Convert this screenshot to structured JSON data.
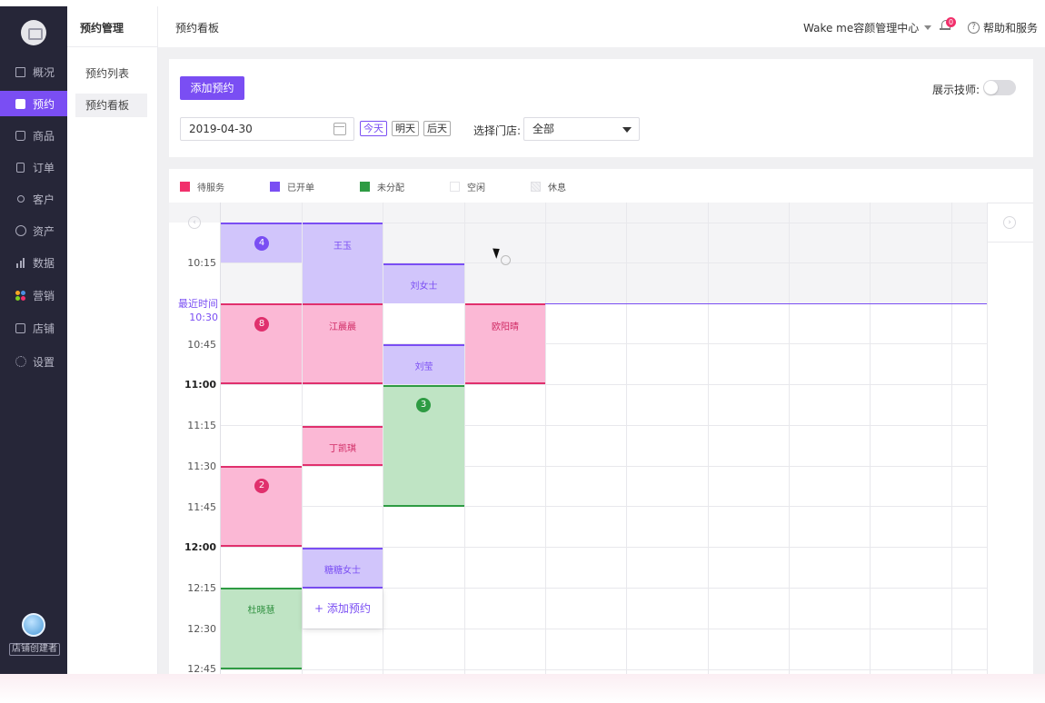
{
  "sidebar": {
    "items": [
      {
        "label": "概况",
        "icon": "monitor-icon",
        "active": false
      },
      {
        "label": "预约",
        "icon": "calendar-icon",
        "active": true
      },
      {
        "label": "商品",
        "icon": "shopping-bag-icon",
        "active": false
      },
      {
        "label": "订单",
        "icon": "document-icon",
        "active": false
      },
      {
        "label": "客户",
        "icon": "user-icon",
        "active": false
      },
      {
        "label": "资产",
        "icon": "coin-icon",
        "active": false
      },
      {
        "label": "数据",
        "icon": "bar-chart-icon",
        "active": false
      },
      {
        "label": "营销",
        "icon": "color-dots-icon",
        "active": false
      },
      {
        "label": "店铺",
        "icon": "store-icon",
        "active": false
      },
      {
        "label": "设置",
        "icon": "gear-icon",
        "active": false
      }
    ],
    "creator_label": "店铺创建者"
  },
  "subnav": {
    "title": "预约管理",
    "items": [
      {
        "label": "预约列表",
        "active": false
      },
      {
        "label": "预约看板",
        "active": true
      }
    ]
  },
  "header": {
    "page_title": "预约看板",
    "center_name": "Wake me容颜管理中心",
    "notification_count": "0",
    "help_label": "帮助和服务"
  },
  "filters": {
    "add_button": "添加预约",
    "show_tech_label": "展示技师:",
    "show_tech_on": false,
    "date_value": "2019-04-30",
    "day_chips": [
      "今天",
      "明天",
      "后天"
    ],
    "active_day": "今天",
    "store_label": "选择门店:",
    "store_value": "全部"
  },
  "legend": [
    {
      "label": "待服务",
      "color": "#f1306b"
    },
    {
      "label": "已开单",
      "color": "#7a4ef3"
    },
    {
      "label": "未分配",
      "color": "#2e9b43"
    },
    {
      "label": "空闲",
      "color": "#ffffff"
    },
    {
      "label": "休息",
      "color": "#e6e6e6"
    }
  ],
  "board": {
    "time_labels": [
      "10:15",
      "10:45",
      "11:00",
      "11:15",
      "11:30",
      "11:45",
      "12:00",
      "12:15",
      "12:30",
      "12:45"
    ],
    "now_label_1": "最近时间",
    "now_label_2": "10:30",
    "appointments": [
      {
        "name": "王玉",
        "status": "已开单"
      },
      {
        "name": "刘女士",
        "status": "已开单"
      },
      {
        "name": "江晨晨",
        "status": "待服务"
      },
      {
        "name": "欧阳晴",
        "status": "待服务"
      },
      {
        "name": "刘莹",
        "status": "已开单"
      },
      {
        "name": "丁凯琪",
        "status": "待服务"
      },
      {
        "name": "糖糖女士",
        "status": "已开单"
      },
      {
        "name": "杜晓慧",
        "status": "未分配"
      }
    ],
    "badges": [
      "4",
      "8",
      "3",
      "2"
    ],
    "add_slot_label": "添加预约"
  }
}
